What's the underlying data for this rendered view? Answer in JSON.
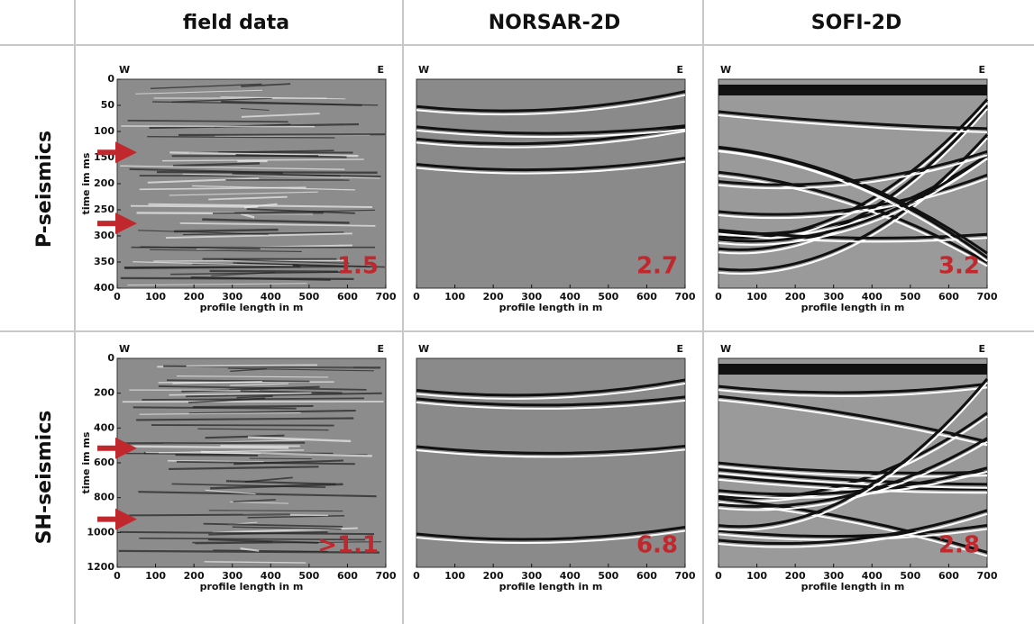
{
  "columns": [
    "field data",
    "NORSAR-2D",
    "SOFI-2D"
  ],
  "west": "W",
  "east": "E",
  "x_axis_label": "profile length in m",
  "xticks": [
    0,
    100,
    200,
    300,
    400,
    500,
    600,
    700
  ],
  "rows": [
    {
      "label": "P-seismics",
      "y_axis_label": "time im ms",
      "yticks": [
        0,
        50,
        100,
        150,
        200,
        250,
        300,
        350,
        400
      ],
      "panels": [
        "1.5",
        "2.7",
        "3.2"
      ]
    },
    {
      "label": "SH-seismics",
      "y_axis_label": "time im ms",
      "yticks": [
        0,
        200,
        400,
        600,
        800,
        1000,
        1200
      ],
      "panels": [
        ">1.1",
        "6.8",
        "2.8"
      ]
    }
  ]
}
